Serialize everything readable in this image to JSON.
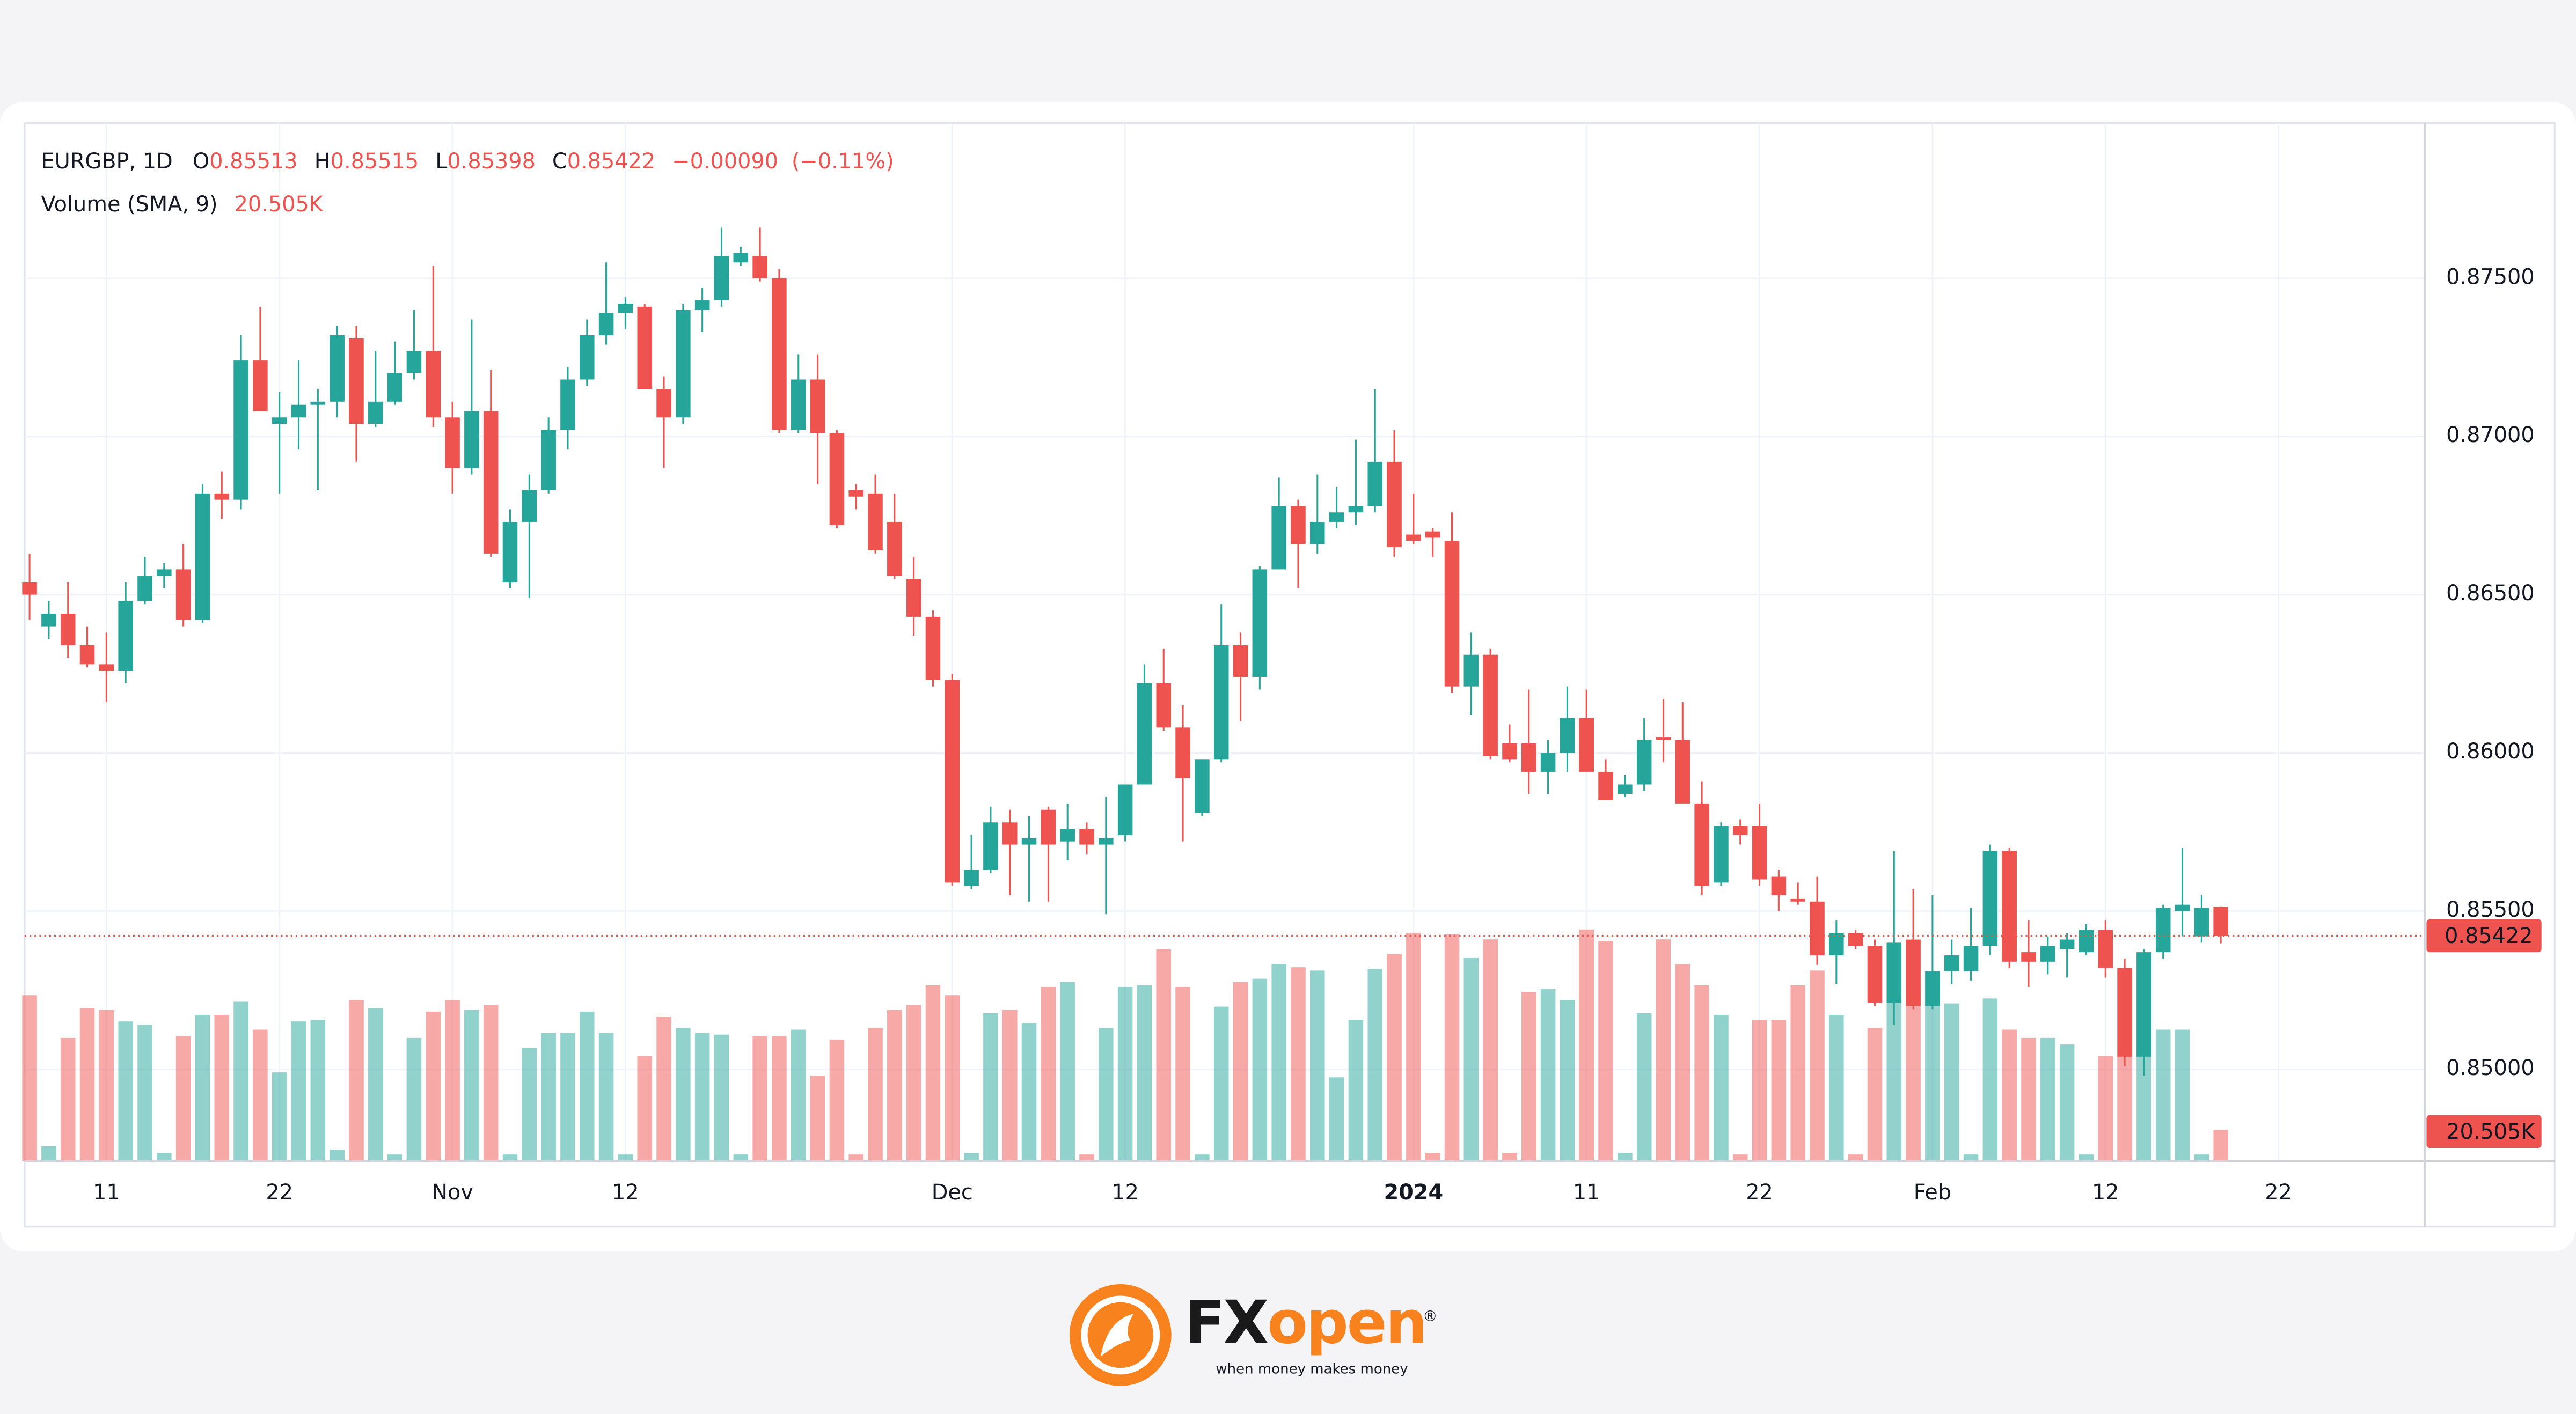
{
  "chart_data": {
    "type": "candlestick",
    "title": "EURGBP, 1D",
    "ohlc_labels": [
      "O",
      "H",
      "L",
      "C"
    ],
    "change": "−0.00090",
    "change_pct": "(−0.11%)",
    "volume_title": "Volume (SMA, 9)",
    "volume_sma": "20.505K",
    "up_color": "#26a69a",
    "down_color": "#ef5350",
    "grid": true,
    "categories": [
      null,
      null,
      null,
      null,
      "11",
      null,
      null,
      null,
      null,
      null,
      null,
      null,
      null,
      "22",
      null,
      null,
      null,
      null,
      null,
      null,
      null,
      null,
      "Nov",
      null,
      null,
      null,
      null,
      null,
      null,
      null,
      null,
      "12",
      null,
      null,
      null,
      null,
      null,
      null,
      null,
      null,
      null,
      null,
      null,
      null,
      null,
      null,
      null,
      null,
      "Dec",
      null,
      null,
      null,
      null,
      null,
      null,
      null,
      null,
      "12",
      null,
      null,
      null,
      null,
      null,
      null,
      null,
      null,
      null,
      null,
      null,
      null,
      null,
      null,
      "2024",
      null,
      null,
      null,
      null,
      null,
      null,
      null,
      null,
      "11",
      null,
      null,
      null,
      null,
      null,
      null,
      null,
      null,
      "22",
      null,
      null,
      null,
      null,
      null,
      null,
      null,
      null,
      "Feb",
      null,
      null,
      null,
      null,
      null,
      null,
      null,
      null,
      "12",
      null,
      null,
      null,
      null,
      null,
      null,
      null,
      null,
      "22"
    ],
    "open": [
      0.8654,
      0.864,
      0.8644,
      0.8634,
      0.8628,
      0.8626,
      0.8648,
      0.8656,
      0.8658,
      0.8642,
      0.8682,
      0.868,
      0.8724,
      0.8704,
      0.8706,
      0.871,
      0.8711,
      0.8731,
      0.8704,
      0.8711,
      0.872,
      0.8727,
      0.8706,
      0.869,
      0.8708,
      0.8654,
      0.8673,
      0.8683,
      0.8702,
      0.8718,
      0.8732,
      0.8739,
      0.8741,
      0.8715,
      0.8706,
      0.874,
      0.8743,
      0.8755,
      0.8757,
      0.875,
      0.8702,
      0.8718,
      0.8701,
      0.8683,
      0.8682,
      0.8673,
      0.8655,
      0.8643,
      0.8623,
      0.8558,
      0.8563,
      0.8578,
      0.8571,
      0.8582,
      0.8572,
      0.8576,
      0.8571,
      0.8574,
      0.859,
      0.8622,
      0.8608,
      0.8581,
      0.8598,
      0.8634,
      0.8624,
      0.8658,
      0.8678,
      0.8666,
      0.8673,
      0.8676,
      0.8678,
      0.8692,
      0.8669,
      0.867,
      0.8667,
      0.8621,
      0.8631,
      0.8603,
      0.8603,
      0.8594,
      0.86,
      0.8611,
      0.8594,
      0.8587,
      0.859,
      0.8605,
      0.8604,
      0.8584,
      0.8559,
      0.8577,
      0.8577,
      0.8561,
      0.8554,
      0.8553,
      0.8536,
      0.8543,
      0.8539,
      0.8521,
      0.8541,
      0.852,
      0.8531,
      0.8531,
      0.8539,
      0.8569,
      0.8537,
      0.8534,
      0.8538,
      0.8537,
      0.8544,
      0.8532,
      0.8504,
      0.8537,
      0.855,
      0.8542,
      0.85513,
      null,
      null,
      null
    ],
    "high": [
      0.8663,
      0.8648,
      0.8654,
      0.864,
      0.8638,
      0.8654,
      0.8662,
      0.866,
      0.8666,
      0.8685,
      0.8689,
      0.8732,
      0.8741,
      0.8714,
      0.8724,
      0.8715,
      0.8735,
      0.8735,
      0.8727,
      0.873,
      0.874,
      0.8754,
      0.8711,
      0.8737,
      0.8721,
      0.8677,
      0.8688,
      0.8706,
      0.8722,
      0.8737,
      0.8755,
      0.8744,
      0.8742,
      0.8719,
      0.8742,
      0.8747,
      0.8766,
      0.876,
      0.8766,
      0.8753,
      0.8726,
      0.8726,
      0.8702,
      0.8685,
      0.8688,
      0.8682,
      0.8662,
      0.8645,
      0.8625,
      0.8574,
      0.8583,
      0.8582,
      0.858,
      0.8583,
      0.8584,
      0.8578,
      0.8586,
      0.859,
      0.8628,
      0.8633,
      0.8615,
      0.8598,
      0.8647,
      0.8638,
      0.8659,
      0.8687,
      0.868,
      0.8688,
      0.8684,
      0.8699,
      0.8715,
      0.8702,
      0.8682,
      0.8671,
      0.8676,
      0.8638,
      0.8633,
      0.8609,
      0.862,
      0.8604,
      0.8621,
      0.862,
      0.8598,
      0.8593,
      0.8611,
      0.8617,
      0.8616,
      0.8591,
      0.8578,
      0.8579,
      0.8584,
      0.8563,
      0.8559,
      0.8561,
      0.8547,
      0.8544,
      0.8541,
      0.8569,
      0.8557,
      0.8555,
      0.8541,
      0.8551,
      0.8571,
      0.857,
      0.8547,
      0.8542,
      0.8543,
      0.8546,
      0.8547,
      0.8535,
      0.8538,
      0.8552,
      0.857,
      0.8555,
      0.85515,
      null,
      null,
      null
    ],
    "low": [
      0.8642,
      0.8636,
      0.863,
      0.8627,
      0.8616,
      0.8622,
      0.8647,
      0.8652,
      0.864,
      0.8641,
      0.8674,
      0.8677,
      0.8708,
      0.8682,
      0.8696,
      0.8683,
      0.8706,
      0.8692,
      0.8703,
      0.871,
      0.8718,
      0.8703,
      0.8682,
      0.8688,
      0.8662,
      0.8652,
      0.8649,
      0.8682,
      0.8696,
      0.8716,
      0.8729,
      0.8734,
      0.8715,
      0.869,
      0.8704,
      0.8733,
      0.8741,
      0.8754,
      0.8749,
      0.8701,
      0.8701,
      0.8685,
      0.8671,
      0.8677,
      0.8663,
      0.8655,
      0.8637,
      0.8621,
      0.8558,
      0.8557,
      0.8562,
      0.8555,
      0.8553,
      0.8553,
      0.8566,
      0.8568,
      0.8549,
      0.8572,
      0.859,
      0.8607,
      0.8572,
      0.858,
      0.8597,
      0.861,
      0.862,
      0.8658,
      0.8652,
      0.8663,
      0.8671,
      0.8672,
      0.8676,
      0.8662,
      0.8666,
      0.8662,
      0.8619,
      0.8612,
      0.8598,
      0.8597,
      0.8587,
      0.8587,
      0.8594,
      0.8594,
      0.8585,
      0.8586,
      0.8588,
      0.8597,
      0.8586,
      0.8555,
      0.8558,
      0.8571,
      0.8558,
      0.855,
      0.8552,
      0.8533,
      0.8527,
      0.8538,
      0.852,
      0.8514,
      0.8519,
      0.8519,
      0.8527,
      0.8528,
      0.8536,
      0.8532,
      0.8526,
      0.853,
      0.8529,
      0.8536,
      0.8529,
      0.8501,
      0.8498,
      0.8535,
      0.8542,
      0.854,
      0.85398,
      null,
      null,
      null
    ],
    "close": [
      0.865,
      0.8644,
      0.8634,
      0.8628,
      0.8626,
      0.8648,
      0.8656,
      0.8658,
      0.8642,
      0.8682,
      0.868,
      0.8724,
      0.8708,
      0.8706,
      0.871,
      0.8711,
      0.8732,
      0.8704,
      0.8711,
      0.872,
      0.8727,
      0.8706,
      0.869,
      0.8708,
      0.8663,
      0.8673,
      0.8683,
      0.8702,
      0.8718,
      0.8732,
      0.8739,
      0.8742,
      0.8715,
      0.8706,
      0.874,
      0.8743,
      0.8757,
      0.8758,
      0.875,
      0.8702,
      0.8718,
      0.8701,
      0.8672,
      0.8681,
      0.8664,
      0.8656,
      0.8643,
      0.8623,
      0.8559,
      0.8563,
      0.8578,
      0.8571,
      0.8573,
      0.8571,
      0.8576,
      0.8571,
      0.8573,
      0.859,
      0.8622,
      0.8608,
      0.8592,
      0.8598,
      0.8634,
      0.8624,
      0.8658,
      0.8678,
      0.8666,
      0.8673,
      0.8676,
      0.8678,
      0.8692,
      0.8665,
      0.8667,
      0.8668,
      0.8621,
      0.8631,
      0.8599,
      0.8598,
      0.8594,
      0.86,
      0.8611,
      0.8594,
      0.8585,
      0.859,
      0.8604,
      0.8604,
      0.8584,
      0.8558,
      0.8577,
      0.8574,
      0.856,
      0.8555,
      0.8553,
      0.8536,
      0.8543,
      0.8539,
      0.8521,
      0.854,
      0.852,
      0.8531,
      0.8536,
      0.8539,
      0.8569,
      0.8534,
      0.8534,
      0.8539,
      0.8541,
      0.8544,
      0.8532,
      0.8504,
      0.8537,
      0.8551,
      0.8552,
      0.8551,
      0.85422,
      null,
      null,
      null
    ],
    "volume": [
      20.2,
      1.8,
      15.0,
      18.6,
      18.4,
      17.0,
      16.6,
      1.0,
      15.2,
      17.8,
      17.8,
      19.4,
      16.0,
      10.8,
      17.0,
      17.2,
      1.4,
      19.6,
      18.6,
      0.8,
      15.0,
      18.2,
      19.6,
      18.4,
      19.0,
      0.8,
      13.8,
      15.6,
      15.6,
      18.2,
      15.6,
      0.8,
      12.8,
      17.6,
      16.2,
      15.6,
      15.4,
      0.8,
      15.2,
      15.2,
      16.0,
      10.4,
      14.8,
      0.8,
      16.2,
      18.4,
      19.0,
      21.4,
      20.2,
      1.0,
      18.0,
      18.4,
      16.8,
      21.2,
      21.8,
      0.8,
      16.2,
      21.2,
      21.4,
      25.8,
      21.2,
      0.8,
      18.8,
      21.8,
      22.2,
      24.0,
      23.6,
      23.2,
      10.2,
      17.2,
      23.4,
      25.2,
      27.8,
      1.0,
      27.6,
      24.8,
      27.0,
      1.0,
      20.6,
      21.0,
      19.6,
      28.2,
      26.8,
      1.0,
      18.0,
      27.0,
      24.0,
      21.4,
      17.8,
      0.8,
      17.2,
      17.2,
      21.4,
      23.2,
      17.8,
      0.8,
      16.2,
      20.0,
      20.6,
      19.2,
      19.2,
      0.8,
      19.8,
      16.0,
      15.0,
      15.0,
      14.2,
      0.8,
      12.8,
      13.0,
      14.8,
      16.0,
      16.0,
      0.8,
      3.8,
      null,
      null,
      null
    ],
    "ylim": [
      0.8471,
      0.8799
    ],
    "yticks": [
      {
        "value": 0.85,
        "label": "0.85000"
      },
      {
        "value": 0.855,
        "label": "0.85500"
      },
      {
        "value": 0.86,
        "label": "0.86000"
      },
      {
        "value": 0.865,
        "label": "0.86500"
      },
      {
        "value": 0.87,
        "label": "0.87000"
      },
      {
        "value": 0.875,
        "label": "0.87500"
      }
    ]
  },
  "branding": {
    "name_parts": [
      "FX",
      "open"
    ],
    "registered_mark": "®",
    "tagline": "when money makes money"
  }
}
